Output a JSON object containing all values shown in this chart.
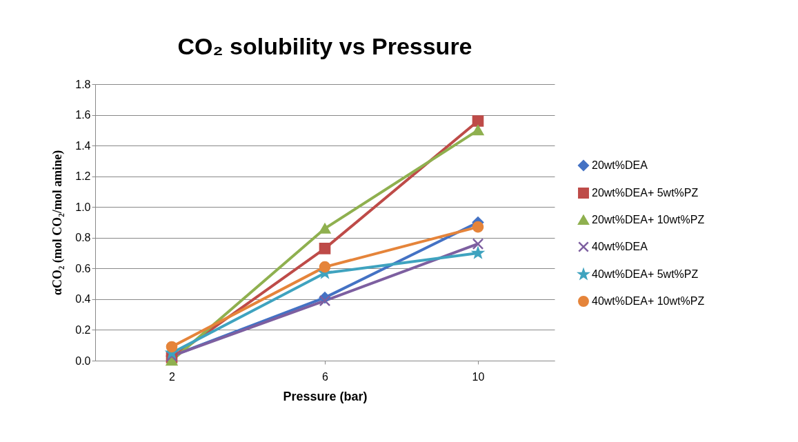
{
  "chart_data": {
    "type": "line",
    "title": "CO₂ solubility vs Pressure",
    "xlabel": "Pressure (bar)",
    "ylabel": "αCO₂ (mol CO₂/mol amine)",
    "categories": [
      "2",
      "6",
      "10"
    ],
    "series": [
      {
        "name": "20wt%DEA",
        "color": "#4472c4",
        "marker": "diamond",
        "values": [
          0.03,
          0.41,
          0.9
        ]
      },
      {
        "name": "20wt%DEA+ 5wt%PZ",
        "color": "#be4b48",
        "marker": "square",
        "values": [
          0.02,
          0.73,
          1.56
        ]
      },
      {
        "name": "20wt%DEA+ 10wt%PZ",
        "color": "#8fb04f",
        "marker": "triangle",
        "values": [
          0.0,
          0.86,
          1.5
        ]
      },
      {
        "name": "40wt%DEA",
        "color": "#7d5fa0",
        "marker": "cross",
        "values": [
          0.03,
          0.39,
          0.76
        ]
      },
      {
        "name": "40wt%DEA+ 5wt%PZ",
        "color": "#3fa3bf",
        "marker": "star",
        "values": [
          0.05,
          0.57,
          0.7
        ]
      },
      {
        "name": "40wt%DEA+ 10wt%PZ",
        "color": "#e5843a",
        "marker": "circle",
        "values": [
          0.09,
          0.61,
          0.87
        ]
      }
    ],
    "ylim": [
      0,
      1.8
    ],
    "yticks": [
      {
        "value": 0,
        "label": "0.0"
      },
      0.2,
      0.4,
      0.6,
      0.8,
      {
        "value": 1,
        "label": "1.0"
      },
      1.2,
      1.4,
      1.6,
      1.8
    ],
    "grid": "y",
    "legend": "right"
  }
}
